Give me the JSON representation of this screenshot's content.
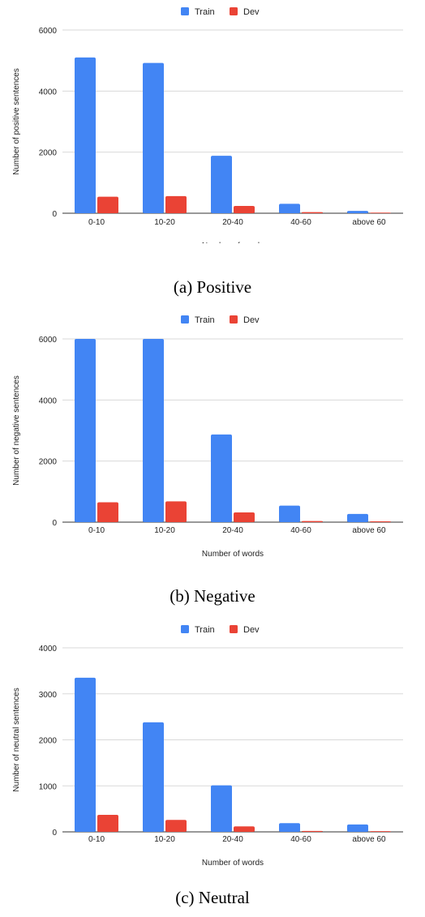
{
  "colors": {
    "train": "#4285F4",
    "dev": "#EA4335",
    "grid": "#d9d9d9",
    "axis": "#333333"
  },
  "chart_data": [
    {
      "type": "bar",
      "caption": "(a) Positive",
      "xlabel": "Number of words",
      "ylabel": "Number of positive sentences",
      "ylim": [
        0,
        6000
      ],
      "yticks": [
        0,
        2000,
        4000,
        6000
      ],
      "ytick_labels": [
        "0",
        "2000",
        "4000",
        "6000"
      ],
      "legend_position": "top",
      "grid": true,
      "categories": [
        "0-10",
        "10-20",
        "20-40",
        "40-60",
        "above 60"
      ],
      "series": [
        {
          "name": "Train",
          "values": [
            5100,
            4920,
            1880,
            310,
            75
          ]
        },
        {
          "name": "Dev",
          "values": [
            540,
            560,
            240,
            35,
            5
          ]
        }
      ]
    },
    {
      "type": "bar",
      "caption": "(b) Negative",
      "xlabel": "Number of words",
      "ylabel": "Number of negative sentences",
      "ylim": [
        0,
        6000
      ],
      "yticks": [
        0,
        2000,
        4000,
        6000
      ],
      "ytick_labels": [
        "0",
        "2000",
        "4000",
        "6000"
      ],
      "legend_position": "top",
      "grid": true,
      "categories": [
        "0-10",
        "10-20",
        "20-40",
        "40-60",
        "above 60"
      ],
      "series": [
        {
          "name": "Train",
          "values": [
            6000,
            6000,
            2870,
            540,
            270
          ]
        },
        {
          "name": "Dev",
          "values": [
            650,
            680,
            320,
            35,
            25
          ]
        }
      ]
    },
    {
      "type": "bar",
      "caption": "(c) Neutral",
      "xlabel": "Number of words",
      "ylabel": "Number of neutral sentences",
      "ylim": [
        0,
        4000
      ],
      "yticks": [
        0,
        1000,
        2000,
        3000,
        4000
      ],
      "ytick_labels": [
        "0",
        "1000",
        "2000",
        "3000",
        "4000"
      ],
      "legend_position": "top",
      "grid": true,
      "categories": [
        "0-10",
        "10-20",
        "20-40",
        "40-60",
        "above 60"
      ],
      "series": [
        {
          "name": "Train",
          "values": [
            3350,
            2380,
            1010,
            190,
            160
          ]
        },
        {
          "name": "Dev",
          "values": [
            370,
            260,
            120,
            20,
            15
          ]
        }
      ]
    }
  ]
}
